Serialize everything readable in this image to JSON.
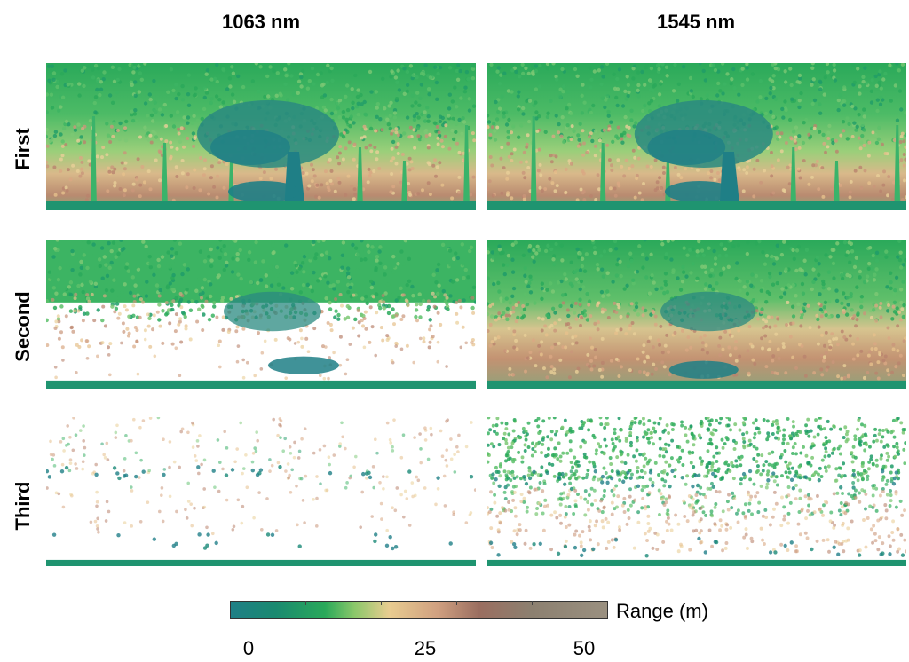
{
  "columns": [
    "1063 nm",
    "1545 nm"
  ],
  "rows": [
    "First",
    "Second",
    "Third"
  ],
  "colorbar": {
    "label": "Range (m)",
    "ticks": [
      "0",
      "25",
      "50"
    ],
    "colors": [
      "#1f7f86",
      "#1a8a70",
      "#2aa95a",
      "#5cc06a",
      "#e6c98e",
      "#c08a6a",
      "#8b6a5a",
      "#8c8070"
    ]
  }
}
